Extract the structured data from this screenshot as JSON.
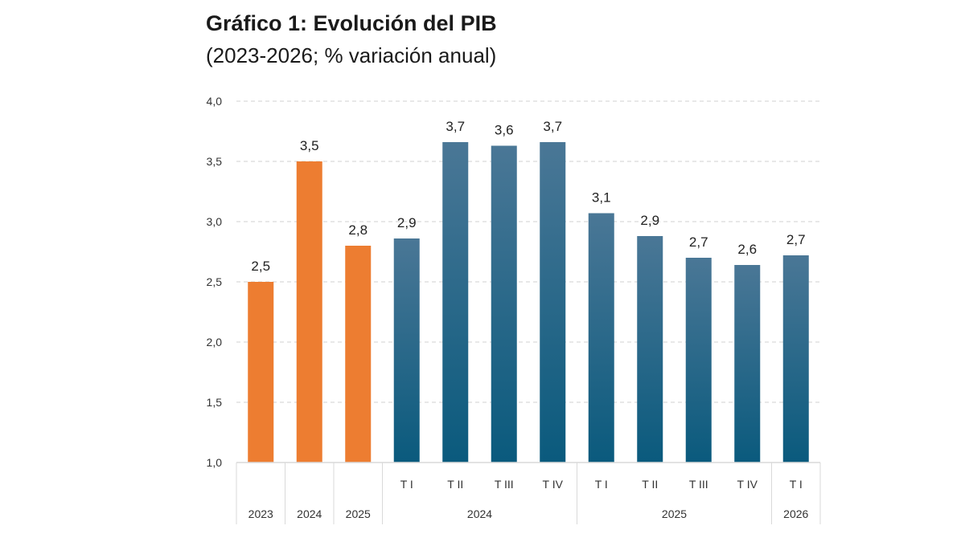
{
  "chart_data": {
    "type": "bar",
    "title": "Gráfico 1: Evolución del PIB",
    "subtitle": "(2023-2026; % variación anual)",
    "xlabel": "",
    "ylabel": "",
    "ylim": [
      1.0,
      4.0
    ],
    "yticks": [
      "1,0",
      "1,5",
      "2,0",
      "2,5",
      "3,0",
      "3,5",
      "4,0"
    ],
    "grid": true,
    "colors": {
      "annual": "#ED7D31",
      "quarterly_top": "#4A7796",
      "quarterly_bottom": "#0A5A7D",
      "grid": "#d0d0d0",
      "axis": "#d9d9d9"
    },
    "bars": [
      {
        "label": "2023",
        "value": 2.5,
        "value_label": "2,5",
        "kind": "annual"
      },
      {
        "label": "2024",
        "value": 3.5,
        "value_label": "3,5",
        "kind": "annual"
      },
      {
        "label": "2025",
        "value": 2.8,
        "value_label": "2,8",
        "kind": "annual"
      },
      {
        "label": "T I",
        "value": 2.86,
        "value_label": "2,9",
        "kind": "quarterly"
      },
      {
        "label": "T II",
        "value": 3.66,
        "value_label": "3,7",
        "kind": "quarterly"
      },
      {
        "label": "T III",
        "value": 3.63,
        "value_label": "3,6",
        "kind": "quarterly"
      },
      {
        "label": "T IV",
        "value": 3.66,
        "value_label": "3,7",
        "kind": "quarterly"
      },
      {
        "label": "T I",
        "value": 3.07,
        "value_label": "3,1",
        "kind": "quarterly"
      },
      {
        "label": "T II",
        "value": 2.88,
        "value_label": "2,9",
        "kind": "quarterly"
      },
      {
        "label": "T III",
        "value": 2.7,
        "value_label": "2,7",
        "kind": "quarterly"
      },
      {
        "label": "T IV",
        "value": 2.64,
        "value_label": "2,6",
        "kind": "quarterly"
      },
      {
        "label": "T I",
        "value": 2.72,
        "value_label": "2,7",
        "kind": "quarterly"
      }
    ],
    "groups": [
      {
        "label": "2023",
        "start": 0,
        "end": 0,
        "row": 1
      },
      {
        "label": "2024",
        "start": 1,
        "end": 1,
        "row": 1
      },
      {
        "label": "2025",
        "start": 2,
        "end": 2,
        "row": 1
      },
      {
        "label": "2024",
        "start": 3,
        "end": 6,
        "row": 2
      },
      {
        "label": "2025",
        "start": 7,
        "end": 10,
        "row": 2
      },
      {
        "label": "2026",
        "start": 11,
        "end": 11,
        "row": 2
      }
    ]
  }
}
